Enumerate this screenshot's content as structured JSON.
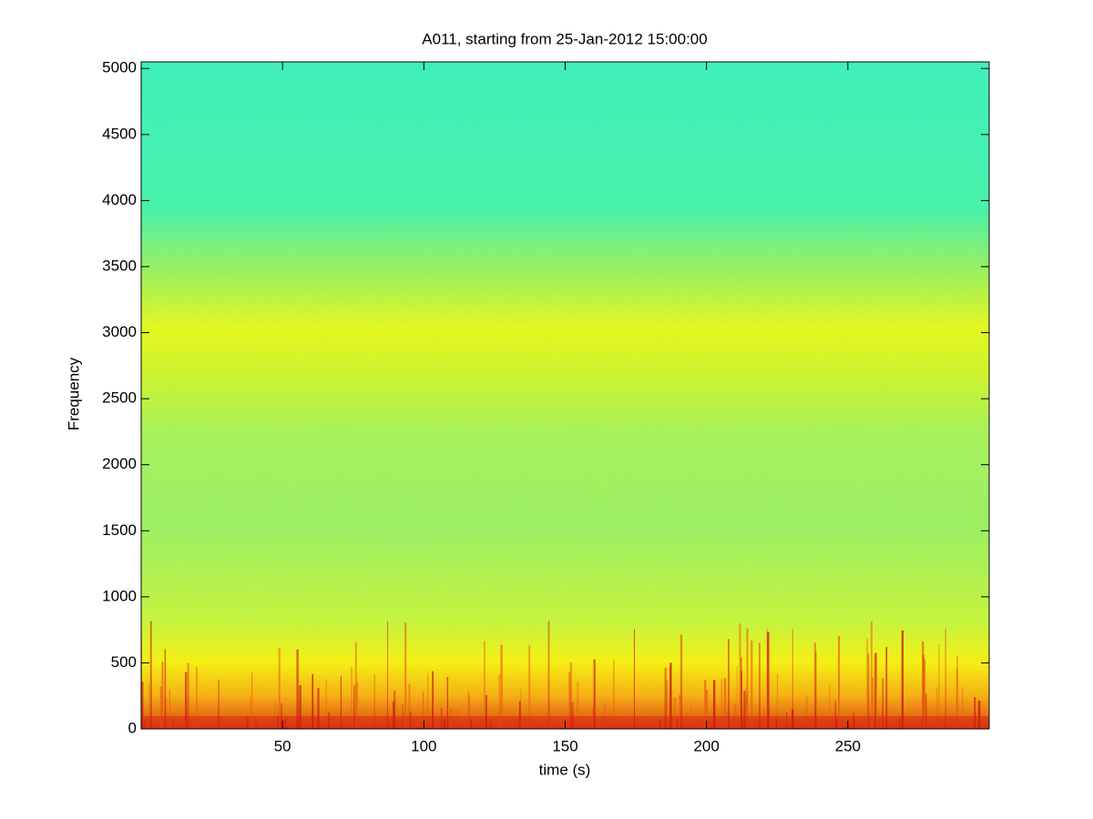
{
  "chart_data": {
    "type": "spectrogram",
    "title": "A011, starting from 25-Jan-2012 15:00:00",
    "x_label": "time (s)",
    "y_label": "Frequency",
    "xlim": [
      0,
      300
    ],
    "xticks": [
      50,
      100,
      150,
      200,
      250
    ],
    "ylim": [
      0,
      5050
    ],
    "yticks": [
      0,
      500,
      1000,
      1500,
      2000,
      2500,
      3000,
      3500,
      4000,
      4500,
      5000
    ]
  }
}
